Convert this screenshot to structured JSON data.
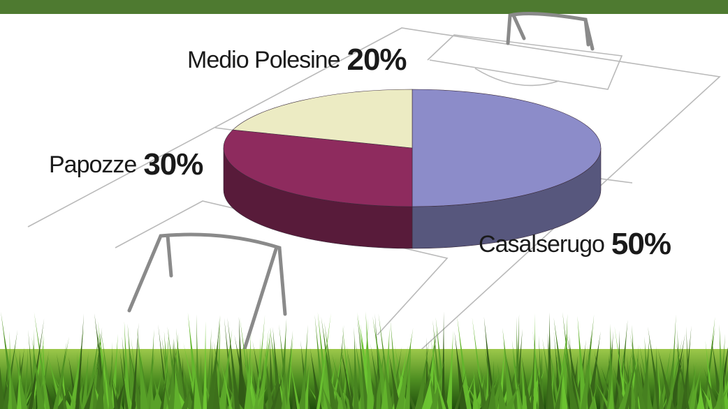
{
  "chart_data": {
    "type": "pie3d",
    "categories": [
      "Casalserugo",
      "Papozze",
      "Medio Polesine"
    ],
    "values": [
      50,
      30,
      20
    ],
    "value_labels": [
      "50%",
      "30%",
      "20%"
    ],
    "colors": [
      "#8c8cc9",
      "#8e2b5e",
      "#ecebc3"
    ]
  }
}
